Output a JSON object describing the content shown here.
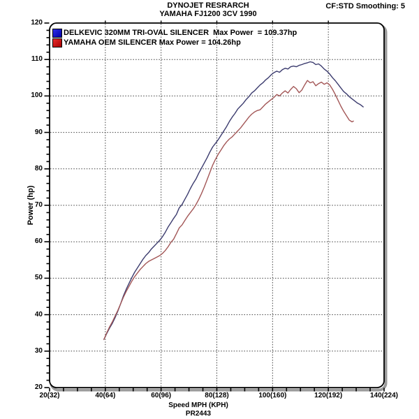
{
  "header": {
    "title_line1": "DYNOJET RESRARCH",
    "title_line2": "YAMAHA FJ1200 3CV 1990",
    "correction_info": "CF:STD Smoothing: 5"
  },
  "legend": {
    "items": [
      {
        "label": "DELKEVIC 320MM TRI-OVAL SILENCER  Max Power  = 109.37hp",
        "swatch_color_top": "#2e2eea",
        "swatch_color_bottom": "#0000a6"
      },
      {
        "label": "YAMAHA OEM SILENCER Max Power = 104.26hp",
        "swatch_color_top": "#ea2e2e",
        "swatch_color_bottom": "#a60000"
      }
    ]
  },
  "axes": {
    "x_label": "Speed MPH (KPH)",
    "x_run_id": "PR2443",
    "y_label": "Power (hp)",
    "x_ticks": [
      {
        "mph": 20,
        "label": "20(32)"
      },
      {
        "mph": 40,
        "label": "40(64)"
      },
      {
        "mph": 60,
        "label": "60(96)"
      },
      {
        "mph": 80,
        "label": "80(128)"
      },
      {
        "mph": 100,
        "label": "100(160)"
      },
      {
        "mph": 120,
        "label": "120(192)"
      },
      {
        "mph": 140,
        "label": "140(224)"
      }
    ],
    "y_ticks": [
      {
        "hp": 20,
        "label": "20"
      },
      {
        "hp": 30,
        "label": "30"
      },
      {
        "hp": 40,
        "label": "40"
      },
      {
        "hp": 50,
        "label": "50"
      },
      {
        "hp": 60,
        "label": "60"
      },
      {
        "hp": 70,
        "label": "70"
      },
      {
        "hp": 80,
        "label": "80"
      },
      {
        "hp": 90,
        "label": "90"
      },
      {
        "hp": 100,
        "label": "100"
      },
      {
        "hp": 110,
        "label": "110"
      },
      {
        "hp": 120,
        "label": "120"
      }
    ]
  },
  "chart_data": {
    "type": "line",
    "title": "DYNOJET RESRARCH",
    "subtitle": "YAMAHA FJ1200 3CV 1990",
    "xlabel": "Speed MPH (KPH)",
    "ylabel": "Power (hp)",
    "xlim": [
      20,
      140
    ],
    "ylim": [
      20,
      120
    ],
    "x_major_step": 20,
    "x_minor_step": 5,
    "y_major_step": 10,
    "y_minor_step": 2,
    "grid": "dotted-at-major-ticks",
    "legend_position": "top-left",
    "grid_color": "#404040",
    "bevel_color": "#9b9b9b",
    "series": [
      {
        "name": "DELKEVIC 320MM TRI-OVAL SILENCER",
        "max_power_hp": 109.37,
        "color": "#3b3b6e",
        "points": [
          [
            39.5,
            33.2
          ],
          [
            40.5,
            34.8
          ],
          [
            41.5,
            36.3
          ],
          [
            42.5,
            37.6
          ],
          [
            43.5,
            39.2
          ],
          [
            44.5,
            41.0
          ],
          [
            45.5,
            43.0
          ],
          [
            46.5,
            45.2
          ],
          [
            47.5,
            47.0
          ],
          [
            48.5,
            48.6
          ],
          [
            49.5,
            50.2
          ],
          [
            50.5,
            51.6
          ],
          [
            51.5,
            52.8
          ],
          [
            52.5,
            54.0
          ],
          [
            53.5,
            55.2
          ],
          [
            54.5,
            56.2
          ],
          [
            55.5,
            57.0
          ],
          [
            56.5,
            58.0
          ],
          [
            57.5,
            58.8
          ],
          [
            58.5,
            59.6
          ],
          [
            59.5,
            60.4
          ],
          [
            60.5,
            61.4
          ],
          [
            61.5,
            62.6
          ],
          [
            62.5,
            64.0
          ],
          [
            63.5,
            65.2
          ],
          [
            64.5,
            66.4
          ],
          [
            65.5,
            67.5
          ],
          [
            66.5,
            69.3
          ],
          [
            67.5,
            70.2
          ],
          [
            68.5,
            71.6
          ],
          [
            69.5,
            73.0
          ],
          [
            70.5,
            74.6
          ],
          [
            71.5,
            76.0
          ],
          [
            72.5,
            77.2
          ],
          [
            73.5,
            78.8
          ],
          [
            74.5,
            80.2
          ],
          [
            75.5,
            81.6
          ],
          [
            76.5,
            83.0
          ],
          [
            77.5,
            84.6
          ],
          [
            78.5,
            86.0
          ],
          [
            79.5,
            87.0
          ],
          [
            80.5,
            88.0
          ],
          [
            81.5,
            89.2
          ],
          [
            82.5,
            90.4
          ],
          [
            83.5,
            91.6
          ],
          [
            84.5,
            93.0
          ],
          [
            85.5,
            94.2
          ],
          [
            86.5,
            95.2
          ],
          [
            87.5,
            96.4
          ],
          [
            88.5,
            97.2
          ],
          [
            89.5,
            98.0
          ],
          [
            90.5,
            99.0
          ],
          [
            91.5,
            99.8
          ],
          [
            92.5,
            100.8
          ],
          [
            93.5,
            101.4
          ],
          [
            94.5,
            102.2
          ],
          [
            95.5,
            103.0
          ],
          [
            96.5,
            103.6
          ],
          [
            97.5,
            104.4
          ],
          [
            98.5,
            105.0
          ],
          [
            99.5,
            105.8
          ],
          [
            100.5,
            106.4
          ],
          [
            101.5,
            106.8
          ],
          [
            102.5,
            106.5
          ],
          [
            103.5,
            107.2
          ],
          [
            104.5,
            107.6
          ],
          [
            105.5,
            107.4
          ],
          [
            106.5,
            108.0
          ],
          [
            107.5,
            108.2
          ],
          [
            108.5,
            108.0
          ],
          [
            109.5,
            108.4
          ],
          [
            110.5,
            108.6
          ],
          [
            111.5,
            108.9
          ],
          [
            112.5,
            109.1
          ],
          [
            113.5,
            109.37
          ],
          [
            114.5,
            109.2
          ],
          [
            115.5,
            108.6
          ],
          [
            116.5,
            108.8
          ],
          [
            117.5,
            108.2
          ],
          [
            118.5,
            107.4
          ],
          [
            119.5,
            106.8
          ],
          [
            120.5,
            106.0
          ],
          [
            121.5,
            105.0
          ],
          [
            122.5,
            104.2
          ],
          [
            123.5,
            103.2
          ],
          [
            124.5,
            102.2
          ],
          [
            125.5,
            101.2
          ],
          [
            126.5,
            100.6
          ],
          [
            127.5,
            99.8
          ],
          [
            128.5,
            99.2
          ],
          [
            129.5,
            98.6
          ],
          [
            130.5,
            98.0
          ],
          [
            131.5,
            97.6
          ],
          [
            132.5,
            97.0
          ]
        ]
      },
      {
        "name": "YAMAHA OEM SILENCER",
        "max_power_hp": 104.26,
        "color": "#a35757",
        "points": [
          [
            39.5,
            33.2
          ],
          [
            40.5,
            35.0
          ],
          [
            41.5,
            36.6
          ],
          [
            42.5,
            38.0
          ],
          [
            43.5,
            39.6
          ],
          [
            44.5,
            41.2
          ],
          [
            45.5,
            43.0
          ],
          [
            46.5,
            44.8
          ],
          [
            47.5,
            46.4
          ],
          [
            48.5,
            47.8
          ],
          [
            49.5,
            49.2
          ],
          [
            50.5,
            50.4
          ],
          [
            51.5,
            51.4
          ],
          [
            52.5,
            52.4
          ],
          [
            53.5,
            53.2
          ],
          [
            54.5,
            54.0
          ],
          [
            55.5,
            54.6
          ],
          [
            56.5,
            55.0
          ],
          [
            57.5,
            55.4
          ],
          [
            58.5,
            55.8
          ],
          [
            59.5,
            56.2
          ],
          [
            60.5,
            56.8
          ],
          [
            61.5,
            57.6
          ],
          [
            62.5,
            58.6
          ],
          [
            63.5,
            59.8
          ],
          [
            64.5,
            60.7
          ],
          [
            65.5,
            62.2
          ],
          [
            66.5,
            63.8
          ],
          [
            67.5,
            64.6
          ],
          [
            68.5,
            65.8
          ],
          [
            69.5,
            67.0
          ],
          [
            70.5,
            68.0
          ],
          [
            71.5,
            69.0
          ],
          [
            72.5,
            70.2
          ],
          [
            73.5,
            71.6
          ],
          [
            74.5,
            73.2
          ],
          [
            75.5,
            75.0
          ],
          [
            76.5,
            77.0
          ],
          [
            77.5,
            79.0
          ],
          [
            78.5,
            81.0
          ],
          [
            79.5,
            82.6
          ],
          [
            80.5,
            84.0
          ],
          [
            81.5,
            85.2
          ],
          [
            82.5,
            86.4
          ],
          [
            83.5,
            87.4
          ],
          [
            84.5,
            88.2
          ],
          [
            85.5,
            88.8
          ],
          [
            86.5,
            89.6
          ],
          [
            87.5,
            90.4
          ],
          [
            88.5,
            91.2
          ],
          [
            89.5,
            92.2
          ],
          [
            90.5,
            93.2
          ],
          [
            91.5,
            94.2
          ],
          [
            92.5,
            95.0
          ],
          [
            93.5,
            95.6
          ],
          [
            94.5,
            96.0
          ],
          [
            95.5,
            96.2
          ],
          [
            96.5,
            97.0
          ],
          [
            97.5,
            97.8
          ],
          [
            98.5,
            98.4
          ],
          [
            99.5,
            99.0
          ],
          [
            100.5,
            99.6
          ],
          [
            101.5,
            100.4
          ],
          [
            102.5,
            100.0
          ],
          [
            103.5,
            100.8
          ],
          [
            104.5,
            101.4
          ],
          [
            105.5,
            100.8
          ],
          [
            106.5,
            101.8
          ],
          [
            107.5,
            102.6
          ],
          [
            108.5,
            102.0
          ],
          [
            109.5,
            100.9
          ],
          [
            110.5,
            101.6
          ],
          [
            111.5,
            103.0
          ],
          [
            112.5,
            104.26
          ],
          [
            113.5,
            103.6
          ],
          [
            114.5,
            103.9
          ],
          [
            115.5,
            102.8
          ],
          [
            116.5,
            103.4
          ],
          [
            117.5,
            103.8
          ],
          [
            118.5,
            103.2
          ],
          [
            119.5,
            103.6
          ],
          [
            120.5,
            103.0
          ],
          [
            121.5,
            101.8
          ],
          [
            122.5,
            100.4
          ],
          [
            123.5,
            98.8
          ],
          [
            124.5,
            97.2
          ],
          [
            125.5,
            95.8
          ],
          [
            126.5,
            94.6
          ],
          [
            127.5,
            93.4
          ],
          [
            128.5,
            92.9
          ],
          [
            129.0,
            93.1
          ]
        ]
      }
    ]
  }
}
